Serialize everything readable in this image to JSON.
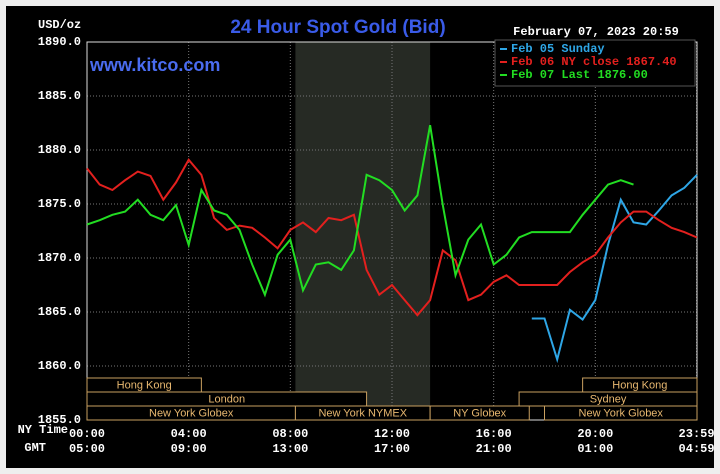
{
  "chart_data": {
    "type": "line",
    "title": "24 Hour Spot Gold (Bid)",
    "site": "www.kitco.com",
    "timestamp": "February 07, 2023 20:59",
    "ylabel": "USD/oz",
    "xlabel": "NY Time",
    "x2label": "GMT",
    "x": [
      0,
      0.5,
      1,
      1.5,
      2,
      2.5,
      3,
      3.5,
      4,
      4.5,
      5,
      5.5,
      6,
      6.5,
      7,
      7.5,
      8,
      8.5,
      9,
      9.5,
      10,
      10.5,
      11,
      11.5,
      12,
      12.5,
      13,
      13.5,
      14,
      14.5,
      15,
      15.5,
      16,
      16.5,
      17,
      17.5,
      18,
      18.5,
      19,
      19.5,
      20,
      20.5,
      21,
      21.5,
      22,
      22.5,
      23,
      23.5,
      24
    ],
    "xlim": [
      0,
      24
    ],
    "xticks": [
      {
        "value": 0,
        "label": "00:00"
      },
      {
        "value": 4,
        "label": "04:00"
      },
      {
        "value": 8,
        "label": "08:00"
      },
      {
        "value": 12,
        "label": "12:00"
      },
      {
        "value": 16,
        "label": "16:00"
      },
      {
        "value": 20,
        "label": "20:00"
      },
      {
        "value": 23.983,
        "label": "23:59"
      }
    ],
    "x2ticks": [
      {
        "value": 0,
        "label": "05:00"
      },
      {
        "value": 4,
        "label": "09:00"
      },
      {
        "value": 8,
        "label": "13:00"
      },
      {
        "value": 12,
        "label": "17:00"
      },
      {
        "value": 16,
        "label": "21:00"
      },
      {
        "value": 20,
        "label": "01:00"
      },
      {
        "value": 23.983,
        "label": "04:59"
      }
    ],
    "ylim": [
      1855,
      1890
    ],
    "yticks": [
      {
        "value": 1855,
        "label": "1855.0"
      },
      {
        "value": 1860,
        "label": "1860.0"
      },
      {
        "value": 1865,
        "label": "1865.0"
      },
      {
        "value": 1870,
        "label": "1870.0"
      },
      {
        "value": 1875,
        "label": "1875.0"
      },
      {
        "value": 1880,
        "label": "1880.0"
      },
      {
        "value": 1885,
        "label": "1885.0"
      },
      {
        "value": 1890,
        "label": "1890.0"
      }
    ],
    "grid": true,
    "series": [
      {
        "name": "Feb 05 Sunday",
        "color": "#2ea6e6",
        "values": [
          null,
          null,
          null,
          null,
          null,
          null,
          null,
          null,
          null,
          null,
          null,
          null,
          null,
          null,
          null,
          null,
          null,
          null,
          null,
          null,
          null,
          null,
          null,
          null,
          null,
          null,
          null,
          null,
          null,
          null,
          null,
          null,
          null,
          null,
          null,
          1864.4,
          1864.4,
          1860.6,
          1865.2,
          1864.3,
          1866.1,
          1871.2,
          1875.4,
          1873.3,
          1873.1,
          1874.4,
          1875.8,
          1876.5,
          1877.7
        ]
      },
      {
        "name": "Feb 06 NY close 1867.40",
        "color": "#e3201e",
        "values": [
          1878.3,
          1876.8,
          1876.3,
          1877.2,
          1878.0,
          1877.6,
          1875.4,
          1877.0,
          1879.1,
          1877.7,
          1873.7,
          1872.6,
          1873.0,
          1872.8,
          1871.9,
          1870.9,
          1872.6,
          1873.3,
          1872.4,
          1873.7,
          1873.5,
          1874.0,
          1868.9,
          1866.6,
          1867.5,
          1866.1,
          1864.7,
          1866.1,
          1870.7,
          1869.8,
          1866.1,
          1866.6,
          1867.8,
          1868.4,
          1867.5,
          1867.5,
          1867.5,
          1867.5,
          1868.7,
          1869.6,
          1870.3,
          1871.9,
          1873.3,
          1874.3,
          1874.3,
          1873.5,
          1872.8,
          1872.4,
          1871.9
        ]
      },
      {
        "name": "Feb 07 Last 1876.00",
        "color": "#22dd22",
        "values": [
          1873.1,
          1873.5,
          1874.0,
          1874.3,
          1875.4,
          1874.0,
          1873.5,
          1874.9,
          1871.2,
          1876.3,
          1874.4,
          1874.0,
          1872.6,
          1869.4,
          1866.6,
          1870.3,
          1871.7,
          1867.0,
          1869.4,
          1869.6,
          1868.9,
          1870.7,
          1877.7,
          1877.2,
          1876.3,
          1874.4,
          1875.8,
          1882.3,
          1874.9,
          1868.4,
          1871.7,
          1873.1,
          1869.4,
          1870.3,
          1871.9,
          1872.4,
          1872.4,
          1872.4,
          1872.4,
          1874.0,
          1875.4,
          1876.8,
          1877.2,
          1876.8,
          null,
          null,
          null,
          null,
          null
        ]
      }
    ],
    "sessions": [
      [
        {
          "name": "Hong Kong",
          "start": 0,
          "end": 4.5
        },
        {
          "name": "Hong Kong",
          "start": 19.5,
          "end": 24
        }
      ],
      [
        {
          "name": "London",
          "start": 0,
          "end": 11
        },
        {
          "name": "Sydney",
          "start": 17,
          "end": 24
        }
      ],
      [
        {
          "name": "New York Globex",
          "start": 0,
          "end": 8.2
        },
        {
          "name": "New York NYMEX",
          "start": 8.2,
          "end": 13.5
        },
        {
          "name": "NY Globex",
          "start": 13.5,
          "end": 17.4
        },
        {
          "name": "New York Globex",
          "start": 18,
          "end": 24
        }
      ]
    ]
  }
}
